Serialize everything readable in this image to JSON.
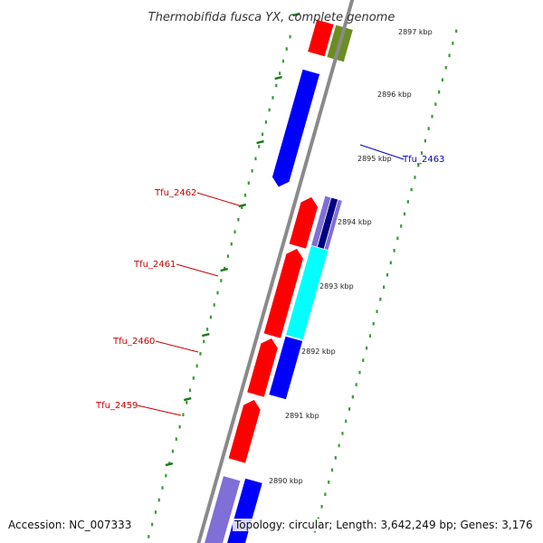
{
  "title": "Thermobifida fusca YX, complete genome",
  "colors": {
    "backbone": "#8a8a8a",
    "tick_major": "#1a7a1a",
    "tick_minor": "#3a9a3a",
    "forward_gene": "#ff0000",
    "reverse_gene": "#0000ff",
    "cyan_gene": "#00ffff",
    "lavender_gene": "#7f6fd6",
    "olive_gene": "#6b8e23",
    "navy_gene": "#000080",
    "label_red": "#cc0000",
    "label_blue": "#0000cc"
  },
  "scale": {
    "unit": "kbp",
    "ticks": [
      {
        "value": 2890,
        "label": "2890 kbp"
      },
      {
        "value": 2891,
        "label": "2891 kbp"
      },
      {
        "value": 2892,
        "label": "2892 kbp"
      },
      {
        "value": 2893,
        "label": "2893 kbp"
      },
      {
        "value": 2894,
        "label": "2894 kbp"
      },
      {
        "value": 2895,
        "label": "2895 kbp"
      },
      {
        "value": 2896,
        "label": "2896 kbp"
      },
      {
        "value": 2897,
        "label": "2897 kbp"
      }
    ]
  },
  "genes": [
    {
      "name": "Tfu_2459",
      "color_key": "label_red"
    },
    {
      "name": "Tfu_2460",
      "color_key": "label_red"
    },
    {
      "name": "Tfu_2461",
      "color_key": "label_red"
    },
    {
      "name": "Tfu_2462",
      "color_key": "label_red"
    },
    {
      "name": "Tfu_2463",
      "color_key": "label_blue"
    }
  ],
  "footer": {
    "accession": "Accession: NC_007333",
    "topology": "Topology: circular; Length: 3,642,249 bp; Genes: 3,176"
  }
}
